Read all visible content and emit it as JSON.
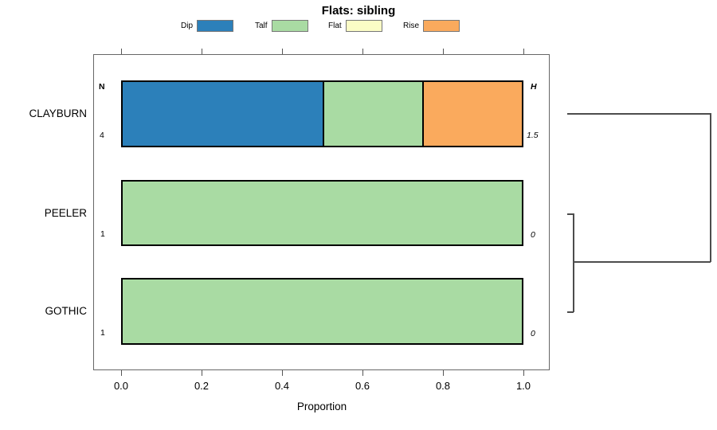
{
  "chart_data": {
    "type": "stacked-bar-horizontal",
    "title": "Flats: sibling",
    "xlabel": "Proportion",
    "xlim": [
      0,
      1
    ],
    "x_ticks": [
      "0.0",
      "0.2",
      "0.4",
      "0.6",
      "0.8",
      "1.0"
    ],
    "col_header_n": "N",
    "col_header_h": "H",
    "legend": [
      {
        "label": "Dip",
        "color": "#2c80ba"
      },
      {
        "label": "Talf",
        "color": "#a9dba3"
      },
      {
        "label": "Flat",
        "color": "#fbfcc6"
      },
      {
        "label": "Rise",
        "color": "#faaa5d"
      }
    ],
    "rows": [
      {
        "category": "CLAYBURN",
        "n": "4",
        "h": "1.5",
        "segments": [
          {
            "name": "Dip",
            "value": 0.5
          },
          {
            "name": "Talf",
            "value": 0.25
          },
          {
            "name": "Rise",
            "value": 0.25
          }
        ]
      },
      {
        "category": "PEELER",
        "n": "1",
        "h": "0",
        "segments": [
          {
            "name": "Talf",
            "value": 1.0
          }
        ]
      },
      {
        "category": "GOTHIC",
        "n": "1",
        "h": "0",
        "segments": [
          {
            "name": "Talf",
            "value": 1.0
          }
        ]
      }
    ],
    "dendrogram": {
      "orientation": "right-margin",
      "merges": [
        {
          "clusters": [
            "PEELER",
            "GOTHIC"
          ],
          "height": 0
        },
        {
          "clusters": [
            "CLAYBURN",
            "PEELER+GOTHIC"
          ],
          "height": 1.5
        }
      ]
    },
    "legend_position": "top",
    "grid": false
  }
}
